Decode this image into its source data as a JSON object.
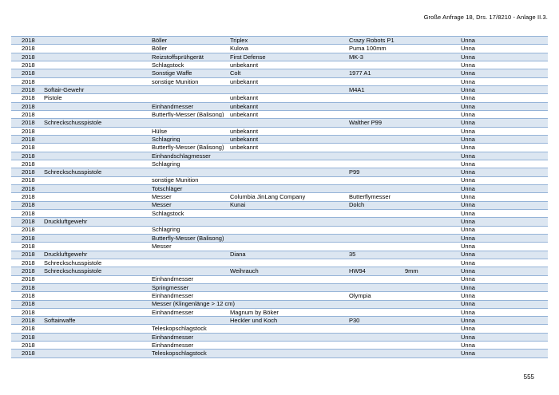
{
  "page": {
    "header_right": "Große Anfrage 18, Drs. 17/8210 - Anlage II.3.",
    "page_number": "555"
  },
  "colors": {
    "stripe": "#dce6f1",
    "border": "#95b3d7"
  },
  "table": {
    "column_keys": [
      "year",
      "type_a",
      "type_b",
      "manufacturer",
      "model",
      "caliber",
      "city"
    ],
    "rows": [
      [
        "2018",
        "",
        "Böller",
        "Triplex",
        "Crazy Robots P1",
        "",
        "Unna"
      ],
      [
        "2018",
        "",
        "Böller",
        "Kulova",
        "Puma 100mm",
        "",
        "Unna"
      ],
      [
        "2018",
        "",
        "Reizstoffsprühgerät",
        "First Defense",
        "MK-3",
        "",
        "Unna"
      ],
      [
        "2018",
        "",
        "Schlagstock",
        "unbekannt",
        "",
        "",
        "Unna"
      ],
      [
        "2018",
        "",
        "Sonstige Waffe",
        "Colt",
        "1977 A1",
        "",
        "Unna"
      ],
      [
        "2018",
        "",
        "sonstige Munition",
        "unbekannt",
        "",
        "",
        "Unna"
      ],
      [
        "2018",
        "Softair-Gewehr",
        "",
        "",
        "M4A1",
        "",
        "Unna"
      ],
      [
        "2018",
        "Pistole",
        "",
        "unbekannt",
        "",
        "",
        "Unna"
      ],
      [
        "2018",
        "",
        "Einhandmesser",
        "unbekannt",
        "",
        "",
        "Unna"
      ],
      [
        "2018",
        "",
        "Butterfly-Messer (Balisong)",
        "unbekannt",
        "",
        "",
        "Unna"
      ],
      [
        "2018",
        "Schreckschusspistole",
        "",
        "",
        "Walther P99",
        "",
        "Unna"
      ],
      [
        "2018",
        "",
        "Hülse",
        "unbekannt",
        "",
        "",
        "Unna"
      ],
      [
        "2018",
        "",
        "Schlagring",
        "unbekannt",
        "",
        "",
        "Unna"
      ],
      [
        "2018",
        "",
        "Butterfly-Messer (Balisong)",
        "unbekannt",
        "",
        "",
        "Unna"
      ],
      [
        "2018",
        "",
        "Einhandschlagmesser",
        "",
        "",
        "",
        "Unna"
      ],
      [
        "2018",
        "",
        "Schlagring",
        "",
        "",
        "",
        "Unna"
      ],
      [
        "2018",
        "Schreckschusspistole",
        "",
        "",
        "P99",
        "",
        "Unna"
      ],
      [
        "2018",
        "",
        "sonstige Munition",
        "",
        "",
        "",
        "Unna"
      ],
      [
        "2018",
        "",
        "Totschläger",
        "",
        "",
        "",
        "Unna"
      ],
      [
        "2018",
        "",
        "Messer",
        "Columbia JinLang Company",
        "Butterflymesser",
        "",
        "Unna"
      ],
      [
        "2018",
        "",
        "Messer",
        "Kunai",
        "Dolch",
        "",
        "Unna"
      ],
      [
        "2018",
        "",
        "Schlagstock",
        "",
        "",
        "",
        "Unna"
      ],
      [
        "2018",
        "Druckluftgewehr",
        "",
        "",
        "",
        "",
        "Unna"
      ],
      [
        "2018",
        "",
        "Schlagring",
        "",
        "",
        "",
        "Unna"
      ],
      [
        "2018",
        "",
        "Butterfly-Messer (Balisong)",
        "",
        "",
        "",
        "Unna"
      ],
      [
        "2018",
        "",
        "Messer",
        "",
        "",
        "",
        "Unna"
      ],
      [
        "2018",
        "Druckluftgewehr",
        "",
        "Diana",
        "35",
        "",
        "Unna"
      ],
      [
        "2018",
        "Schreckschusspistole",
        "",
        "",
        "",
        "",
        "Unna"
      ],
      [
        "2018",
        "Schreckschusspistole",
        "",
        "Weihrauch",
        "HW94",
        "9mm",
        "Unna"
      ],
      [
        "2018",
        "",
        "Einhandmesser",
        "",
        "",
        "",
        "Unna"
      ],
      [
        "2018",
        "",
        "Springmesser",
        "",
        "",
        "",
        "Unna"
      ],
      [
        "2018",
        "",
        "Einhandmesser",
        "",
        "Olympia",
        "",
        "Unna"
      ],
      [
        "2018",
        "",
        "Messer (Klingenlänge > 12 cm)",
        "",
        "",
        "",
        "Unna"
      ],
      [
        "2018",
        "",
        "Einhandmesser",
        "Magnum by Böker",
        "",
        "",
        "Unna"
      ],
      [
        "2018",
        "Softairwaffe",
        "",
        "Heckler und Koch",
        "P30",
        "",
        "Unna"
      ],
      [
        "2018",
        "",
        "Teleskopschlagstock",
        "",
        "",
        "",
        "Unna"
      ],
      [
        "2018",
        "",
        "Einhandmesser",
        "",
        "",
        "",
        "Unna"
      ],
      [
        "2018",
        "",
        "Einhandmesser",
        "",
        "",
        "",
        "Unna"
      ],
      [
        "2018",
        "",
        "Teleskopschlagstock",
        "",
        "",
        "",
        "Unna"
      ]
    ]
  }
}
